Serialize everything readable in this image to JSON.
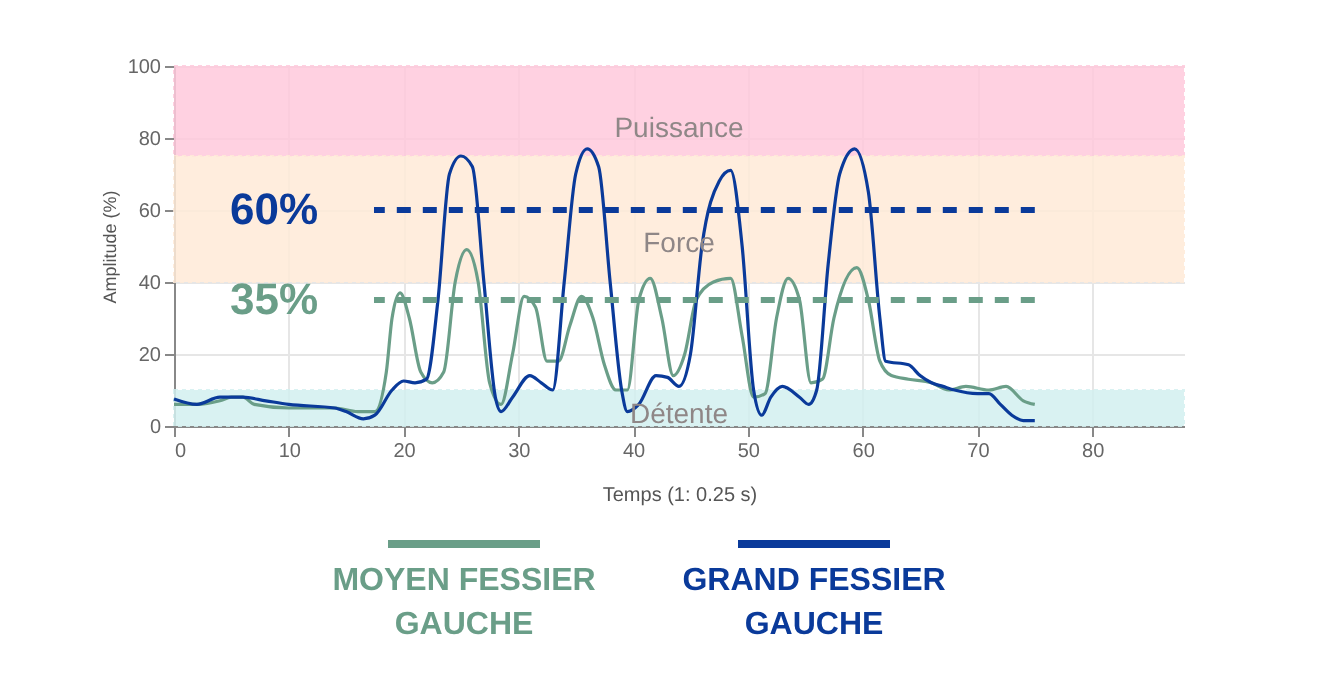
{
  "chart_data": {
    "type": "line",
    "xlabel": "Temps (1: 0.25 s)",
    "ylabel": "Amplitude (%)",
    "xlim": [
      0,
      88
    ],
    "xticks": [
      0,
      10,
      20,
      30,
      40,
      50,
      60,
      70,
      80
    ],
    "ylim": [
      0,
      100
    ],
    "yticks": [
      0,
      20,
      40,
      60,
      80,
      100
    ],
    "grid": true,
    "legend": "bottom",
    "series": [
      {
        "name": "MOYEN FESSIER GAUCHE",
        "color": "#6a9e88",
        "x": [
          0,
          2,
          4,
          5,
          6,
          7,
          10,
          14,
          16,
          17.5,
          18.5,
          19,
          19.7,
          20.5,
          21.5,
          22.5,
          23.5,
          24.5,
          25.5,
          26.5,
          27.5,
          28.5,
          29.5,
          30.5,
          31.5,
          32.5,
          33.5,
          34.5,
          35.5,
          36.5,
          37.5,
          38.5,
          39.5,
          40.5,
          41.5,
          42.5,
          43.5,
          44.5,
          45.5,
          47,
          48.5,
          49.5,
          50.5,
          51.5,
          52.5,
          53.5,
          54.5,
          55.5,
          56.5,
          57.5,
          59.5,
          60.5,
          61.5,
          62.5,
          64,
          66,
          67.5,
          69,
          71,
          72.5,
          74,
          75
        ],
        "values": [
          6,
          6,
          7,
          8,
          8,
          6,
          5,
          5,
          4,
          4,
          15,
          30,
          37,
          30,
          15,
          12,
          15,
          40,
          49,
          40,
          12,
          6,
          20,
          36,
          33,
          18,
          18,
          28,
          36,
          30,
          17,
          10,
          10,
          35,
          41,
          30,
          14,
          20,
          35,
          40,
          41,
          25,
          8,
          9,
          30,
          41,
          35,
          12,
          13,
          30,
          44,
          35,
          18,
          14,
          13,
          12,
          10,
          11,
          10,
          11,
          7,
          6
        ]
      },
      {
        "name": "GRAND FESSIER GAUCHE",
        "color": "#0a3a9a",
        "x": [
          0,
          2,
          4,
          6,
          8,
          10,
          14,
          15,
          16.5,
          17.5,
          19,
          20,
          21,
          22,
          23,
          24,
          25,
          26,
          27,
          28,
          28.5,
          29.5,
          31,
          32,
          33,
          34,
          35,
          36,
          37,
          38,
          39,
          39.5,
          40.5,
          42,
          43,
          44,
          45,
          46,
          47.5,
          48.5,
          49.5,
          50.5,
          51.2,
          52,
          53,
          54.5,
          55.3,
          56,
          57,
          58,
          59.3,
          60.5,
          61.5,
          62,
          64,
          65,
          66,
          67,
          68,
          70,
          71,
          72,
          73,
          74,
          75
        ],
        "values": [
          7.5,
          6,
          8,
          8,
          7,
          6,
          5,
          4,
          2,
          3,
          10,
          12.5,
          12,
          13,
          35,
          70,
          75,
          72,
          40,
          8,
          4,
          8,
          14,
          12,
          10,
          40,
          70,
          77,
          72,
          40,
          10,
          4,
          6,
          14,
          13.5,
          11,
          20,
          50,
          68,
          71,
          50,
          10,
          3,
          8,
          11,
          8,
          6,
          10,
          45,
          70,
          77,
          65,
          30,
          18,
          17,
          14,
          12,
          11,
          10,
          9,
          9,
          6,
          3,
          1.5,
          1.5
        ]
      }
    ],
    "ref_lines": [
      {
        "axis": "y",
        "value": 60,
        "label": "60%",
        "color": "#0a3a9a",
        "line_style": "dashed"
      },
      {
        "axis": "y",
        "value": 35,
        "label": "35%",
        "color": "#6a9e88",
        "line_style": "dashed"
      }
    ],
    "bands": [
      {
        "axis": "y",
        "from": 75,
        "to": 100,
        "label": "Puissance",
        "color": "#ffc9dc"
      },
      {
        "axis": "y",
        "from": 40,
        "to": 75,
        "label": "Force",
        "color": "#ffebd8"
      },
      {
        "axis": "y",
        "from": 0,
        "to": 10,
        "label": "Détente",
        "color": "#d3f0f0"
      }
    ]
  }
}
